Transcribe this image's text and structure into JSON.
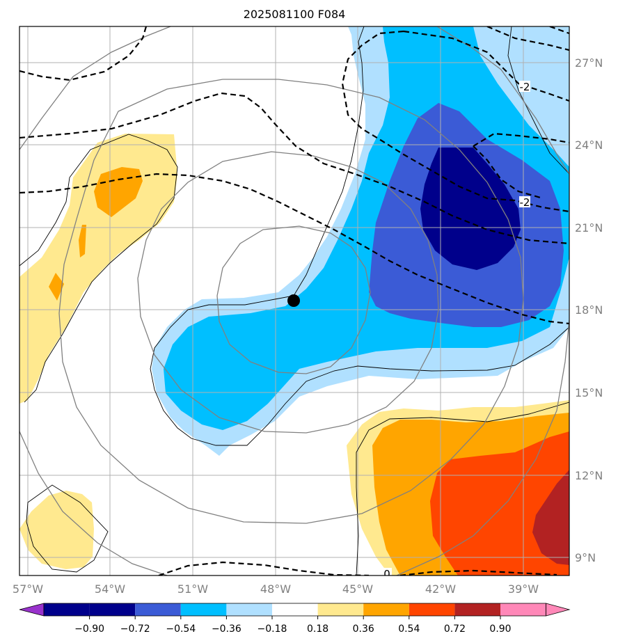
{
  "title": "2025081100 F084",
  "map": {
    "lon_range": [
      -57,
      -37
    ],
    "lat_range": [
      8.5,
      28.5
    ],
    "lon_ticks": [
      {
        "value": -57,
        "label": "57°W"
      },
      {
        "value": -54,
        "label": "54°W"
      },
      {
        "value": -51,
        "label": "51°W"
      },
      {
        "value": -48,
        "label": "48°W"
      },
      {
        "value": -45,
        "label": "45°W"
      },
      {
        "value": -42,
        "label": "42°W"
      },
      {
        "value": -39,
        "label": "39°W"
      }
    ],
    "lat_ticks": [
      {
        "value": 9,
        "label": "9°N"
      },
      {
        "value": 12,
        "label": "12°N"
      },
      {
        "value": 15,
        "label": "15°N"
      },
      {
        "value": 18,
        "label": "18°N"
      },
      {
        "value": 21,
        "label": "21°N"
      },
      {
        "value": 24,
        "label": "24°N"
      },
      {
        "value": 27,
        "label": "27°N"
      }
    ],
    "gridlines": true,
    "storm_center": {
      "lon": -47.3,
      "lat": 18.35
    },
    "contour_labels": [
      {
        "lon": -38.9,
        "lat": 25.8,
        "label": "-2"
      },
      {
        "lon": -38.9,
        "lat": 21.5,
        "label": "-2"
      },
      {
        "lon": -44.2,
        "lat": 8.6,
        "label": "0"
      }
    ]
  },
  "colorbar": {
    "tick_labels": [
      "−0.90",
      "−0.72",
      "−0.54",
      "−0.36",
      "−0.18",
      "0.18",
      "0.36",
      "0.54",
      "0.72",
      "0.90"
    ],
    "colors": [
      "#9932cc",
      "#00008b",
      "#3b5bd6",
      "#00bfff",
      "#b0e0ff",
      "#ffffff",
      "#ffe98f",
      "#ffa500",
      "#ff4500",
      "#b22222",
      "#ff88b8"
    ]
  },
  "colors": {
    "grid": "#b0b0b0",
    "axis_text": "#808080",
    "gray_contour": "#808080",
    "black_contour": "#000000"
  }
}
